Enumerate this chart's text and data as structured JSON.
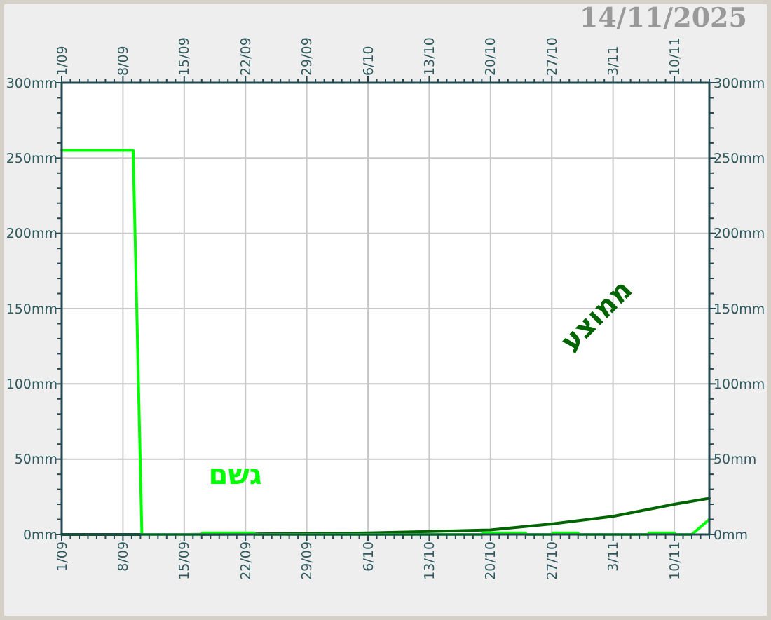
{
  "chart_data": {
    "type": "line",
    "title": "14/11/2025",
    "xlim": [
      "2025-09-01",
      "2025-11-14"
    ],
    "xticks": [
      {
        "value": "2025-09-01",
        "label": "1/09"
      },
      {
        "value": "2025-09-02",
        "label": null
      },
      {
        "value": "2025-09-03",
        "label": null
      },
      {
        "value": "2025-09-04",
        "label": null
      },
      {
        "value": "2025-09-05",
        "label": null
      },
      {
        "value": "2025-09-06",
        "label": null
      },
      {
        "value": "2025-09-07",
        "label": null
      },
      {
        "value": "2025-09-08",
        "label": "8/09"
      },
      {
        "value": "2025-09-09",
        "label": null
      },
      {
        "value": "2025-09-10",
        "label": null
      },
      {
        "value": "2025-09-11",
        "label": null
      },
      {
        "value": "2025-09-12",
        "label": null
      },
      {
        "value": "2025-09-13",
        "label": null
      },
      {
        "value": "2025-09-14",
        "label": null
      },
      {
        "value": "2025-09-15",
        "label": "15/09"
      },
      {
        "value": "2025-09-16",
        "label": null
      },
      {
        "value": "2025-09-17",
        "label": null
      },
      {
        "value": "2025-09-18",
        "label": null
      },
      {
        "value": "2025-09-19",
        "label": null
      },
      {
        "value": "2025-09-20",
        "label": null
      },
      {
        "value": "2025-09-21",
        "label": null
      },
      {
        "value": "2025-09-22",
        "label": "22/09"
      },
      {
        "value": "2025-09-23",
        "label": null
      },
      {
        "value": "2025-09-24",
        "label": null
      },
      {
        "value": "2025-09-25",
        "label": null
      },
      {
        "value": "2025-09-26",
        "label": null
      },
      {
        "value": "2025-09-27",
        "label": null
      },
      {
        "value": "2025-09-28",
        "label": null
      },
      {
        "value": "2025-09-29",
        "label": "29/09"
      },
      {
        "value": "2025-09-30",
        "label": null
      },
      {
        "value": "2025-10-01",
        "label": null
      },
      {
        "value": "2025-10-02",
        "label": null
      },
      {
        "value": "2025-10-03",
        "label": null
      },
      {
        "value": "2025-10-04",
        "label": null
      },
      {
        "value": "2025-10-05",
        "label": null
      },
      {
        "value": "2025-10-06",
        "label": "6/10"
      },
      {
        "value": "2025-10-07",
        "label": null
      },
      {
        "value": "2025-10-08",
        "label": null
      },
      {
        "value": "2025-10-09",
        "label": null
      },
      {
        "value": "2025-10-10",
        "label": null
      },
      {
        "value": "2025-10-11",
        "label": null
      },
      {
        "value": "2025-10-12",
        "label": null
      },
      {
        "value": "2025-10-13",
        "label": "13/10"
      },
      {
        "value": "2025-10-14",
        "label": null
      },
      {
        "value": "2025-10-15",
        "label": null
      },
      {
        "value": "2025-10-16",
        "label": null
      },
      {
        "value": "2025-10-17",
        "label": null
      },
      {
        "value": "2025-10-18",
        "label": null
      },
      {
        "value": "2025-10-19",
        "label": null
      },
      {
        "value": "2025-10-20",
        "label": "20/10"
      },
      {
        "value": "2025-10-21",
        "label": null
      },
      {
        "value": "2025-10-22",
        "label": null
      },
      {
        "value": "2025-10-23",
        "label": null
      },
      {
        "value": "2025-10-24",
        "label": null
      },
      {
        "value": "2025-10-25",
        "label": null
      },
      {
        "value": "2025-10-26",
        "label": null
      },
      {
        "value": "2025-10-27",
        "label": "27/10"
      },
      {
        "value": "2025-10-28",
        "label": null
      },
      {
        "value": "2025-10-29",
        "label": null
      },
      {
        "value": "2025-10-30",
        "label": null
      },
      {
        "value": "2025-10-31",
        "label": null
      },
      {
        "value": "2025-11-01",
        "label": null
      },
      {
        "value": "2025-11-02",
        "label": null
      },
      {
        "value": "2025-11-03",
        "label": "3/11"
      },
      {
        "value": "2025-11-04",
        "label": null
      },
      {
        "value": "2025-11-05",
        "label": null
      },
      {
        "value": "2025-11-06",
        "label": null
      },
      {
        "value": "2025-11-07",
        "label": null
      },
      {
        "value": "2025-11-08",
        "label": null
      },
      {
        "value": "2025-11-09",
        "label": null
      },
      {
        "value": "2025-11-10",
        "label": "10/11"
      },
      {
        "value": "2025-11-11",
        "label": null
      },
      {
        "value": "2025-11-12",
        "label": null
      },
      {
        "value": "2025-11-13",
        "label": null
      },
      {
        "value": "2025-11-14",
        "label": null
      }
    ],
    "x2lim": [
      "2025-09-01",
      "2025-11-14"
    ],
    "x2ticks": [
      {
        "value": "2025-09-01",
        "label": "1/09"
      },
      {
        "value": "2025-09-02",
        "label": null
      },
      {
        "value": "2025-09-03",
        "label": null
      },
      {
        "value": "2025-09-04",
        "label": null
      },
      {
        "value": "2025-09-05",
        "label": null
      },
      {
        "value": "2025-09-06",
        "label": null
      },
      {
        "value": "2025-09-07",
        "label": null
      },
      {
        "value": "2025-09-08",
        "label": "8/09"
      },
      {
        "value": "2025-09-09",
        "label": null
      },
      {
        "value": "2025-09-10",
        "label": null
      },
      {
        "value": "2025-09-11",
        "label": null
      },
      {
        "value": "2025-09-12",
        "label": null
      },
      {
        "value": "2025-09-13",
        "label": null
      },
      {
        "value": "2025-09-14",
        "label": null
      },
      {
        "value": "2025-09-15",
        "label": "15/09"
      },
      {
        "value": "2025-09-16",
        "label": null
      },
      {
        "value": "2025-09-17",
        "label": null
      },
      {
        "value": "2025-09-18",
        "label": null
      },
      {
        "value": "2025-09-19",
        "label": null
      },
      {
        "value": "2025-09-20",
        "label": null
      },
      {
        "value": "2025-09-21",
        "label": null
      },
      {
        "value": "2025-09-22",
        "label": "22/09"
      },
      {
        "value": "2025-09-23",
        "label": null
      },
      {
        "value": "2025-09-24",
        "label": null
      },
      {
        "value": "2025-09-25",
        "label": null
      },
      {
        "value": "2025-09-26",
        "label": null
      },
      {
        "value": "2025-09-27",
        "label": null
      },
      {
        "value": "2025-09-28",
        "label": null
      },
      {
        "value": "2025-09-29",
        "label": "29/09"
      },
      {
        "value": "2025-09-30",
        "label": null
      },
      {
        "value": "2025-10-01",
        "label": null
      },
      {
        "value": "2025-10-02",
        "label": null
      },
      {
        "value": "2025-10-03",
        "label": null
      },
      {
        "value": "2025-10-04",
        "label": null
      },
      {
        "value": "2025-10-05",
        "label": null
      },
      {
        "value": "2025-10-06",
        "label": "6/10"
      },
      {
        "value": "2025-10-07",
        "label": null
      },
      {
        "value": "2025-10-08",
        "label": null
      },
      {
        "value": "2025-10-09",
        "label": null
      },
      {
        "value": "2025-10-10",
        "label": null
      },
      {
        "value": "2025-10-11",
        "label": null
      },
      {
        "value": "2025-10-12",
        "label": null
      },
      {
        "value": "2025-10-13",
        "label": "13/10"
      },
      {
        "value": "2025-10-14",
        "label": null
      },
      {
        "value": "2025-10-15",
        "label": null
      },
      {
        "value": "2025-10-16",
        "label": null
      },
      {
        "value": "2025-10-17",
        "label": null
      },
      {
        "value": "2025-10-18",
        "label": null
      },
      {
        "value": "2025-10-19",
        "label": null
      },
      {
        "value": "2025-10-20",
        "label": "20/10"
      },
      {
        "value": "2025-10-21",
        "label": null
      },
      {
        "value": "2025-10-22",
        "label": null
      },
      {
        "value": "2025-10-23",
        "label": null
      },
      {
        "value": "2025-10-24",
        "label": null
      },
      {
        "value": "2025-10-25",
        "label": null
      },
      {
        "value": "2025-10-26",
        "label": null
      },
      {
        "value": "2025-10-27",
        "label": "27/10"
      },
      {
        "value": "2025-10-28",
        "label": null
      },
      {
        "value": "2025-10-29",
        "label": null
      },
      {
        "value": "2025-10-30",
        "label": null
      },
      {
        "value": "2025-10-31",
        "label": null
      },
      {
        "value": "2025-11-01",
        "label": null
      },
      {
        "value": "2025-11-02",
        "label": null
      },
      {
        "value": "2025-11-03",
        "label": "3/11"
      },
      {
        "value": "2025-11-04",
        "label": null
      },
      {
        "value": "2025-11-05",
        "label": null
      },
      {
        "value": "2025-11-06",
        "label": null
      },
      {
        "value": "2025-11-07",
        "label": null
      },
      {
        "value": "2025-11-08",
        "label": null
      },
      {
        "value": "2025-11-09",
        "label": null
      },
      {
        "value": "2025-11-10",
        "label": "10/11"
      },
      {
        "value": "2025-11-11",
        "label": null
      },
      {
        "value": "2025-11-12",
        "label": null
      },
      {
        "value": "2025-11-13",
        "label": null
      },
      {
        "value": "2025-11-14",
        "label": null
      }
    ],
    "ylim": [
      0,
      300
    ],
    "yticks": [
      {
        "value": 0,
        "label": "0mm"
      },
      {
        "value": 10,
        "label": null
      },
      {
        "value": 20,
        "label": null
      },
      {
        "value": 30,
        "label": null
      },
      {
        "value": 40,
        "label": null
      },
      {
        "value": 50,
        "label": "50mm"
      },
      {
        "value": 60,
        "label": null
      },
      {
        "value": 70,
        "label": null
      },
      {
        "value": 80,
        "label": null
      },
      {
        "value": 90,
        "label": null
      },
      {
        "value": 100,
        "label": "100mm"
      },
      {
        "value": 110,
        "label": null
      },
      {
        "value": 120,
        "label": null
      },
      {
        "value": 130,
        "label": null
      },
      {
        "value": 140,
        "label": null
      },
      {
        "value": 150,
        "label": "150mm"
      },
      {
        "value": 160,
        "label": null
      },
      {
        "value": 170,
        "label": null
      },
      {
        "value": 180,
        "label": null
      },
      {
        "value": 190,
        "label": null
      },
      {
        "value": 200,
        "label": "200mm"
      },
      {
        "value": 210,
        "label": null
      },
      {
        "value": 220,
        "label": null
      },
      {
        "value": 230,
        "label": null
      },
      {
        "value": 240,
        "label": null
      },
      {
        "value": 250,
        "label": "250mm"
      },
      {
        "value": 260,
        "label": null
      },
      {
        "value": 270,
        "label": null
      },
      {
        "value": 280,
        "label": null
      },
      {
        "value": 290,
        "label": null
      },
      {
        "value": 300,
        "label": "300mm"
      }
    ],
    "y2lim": [
      0,
      300
    ],
    "y2ticks": [
      {
        "value": 0,
        "label": "0mm"
      },
      {
        "value": 10,
        "label": null
      },
      {
        "value": 20,
        "label": null
      },
      {
        "value": 30,
        "label": null
      },
      {
        "value": 40,
        "label": null
      },
      {
        "value": 50,
        "label": "50mm"
      },
      {
        "value": 60,
        "label": null
      },
      {
        "value": 70,
        "label": null
      },
      {
        "value": 80,
        "label": null
      },
      {
        "value": 90,
        "label": null
      },
      {
        "value": 100,
        "label": "100mm"
      },
      {
        "value": 110,
        "label": null
      },
      {
        "value": 120,
        "label": null
      },
      {
        "value": 130,
        "label": null
      },
      {
        "value": 140,
        "label": null
      },
      {
        "value": 150,
        "label": "150mm"
      },
      {
        "value": 160,
        "label": null
      },
      {
        "value": 170,
        "label": null
      },
      {
        "value": 180,
        "label": null
      },
      {
        "value": 190,
        "label": null
      },
      {
        "value": 200,
        "label": "200mm"
      },
      {
        "value": 210,
        "label": null
      },
      {
        "value": 220,
        "label": null
      },
      {
        "value": 230,
        "label": null
      },
      {
        "value": 240,
        "label": null
      },
      {
        "value": 250,
        "label": "250mm"
      },
      {
        "value": 260,
        "label": null
      },
      {
        "value": 270,
        "label": null
      },
      {
        "value": 280,
        "label": null
      },
      {
        "value": 290,
        "label": null
      },
      {
        "value": 300,
        "label": "300mm"
      }
    ],
    "grid": true,
    "series": [
      {
        "name": "ממוצע",
        "color": "#006400",
        "x": [
          "2025-09-01",
          "2025-09-15",
          "2025-10-06",
          "2025-10-13",
          "2025-10-20",
          "2025-10-27",
          "2025-11-03",
          "2025-11-10",
          "2025-11-14"
        ],
        "values": [
          0,
          0,
          1,
          2,
          3,
          7,
          12,
          20,
          24
        ]
      },
      {
        "name": "גשם",
        "color": "#00ff00",
        "x": [
          "2025-09-01",
          "2025-09-09T04:00",
          "2025-09-10T04:00",
          "2025-09-17",
          "2025-09-17T02:00",
          "2025-09-23",
          "2025-09-23T02:00",
          "2025-10-19",
          "2025-10-19T02:00",
          "2025-10-24",
          "2025-10-24T02:00",
          "2025-10-27",
          "2025-10-27T02:00",
          "2025-10-30",
          "2025-10-30T02:00",
          "2025-11-07",
          "2025-11-07T02:00",
          "2025-11-10",
          "2025-11-10T02:00",
          "2025-11-12",
          "2025-11-14"
        ],
        "values": [
          255,
          255,
          0,
          0,
          1,
          1,
          0,
          0,
          1,
          1,
          0,
          0,
          1,
          1,
          0,
          0,
          1,
          1,
          0,
          0,
          10
        ]
      }
    ]
  }
}
